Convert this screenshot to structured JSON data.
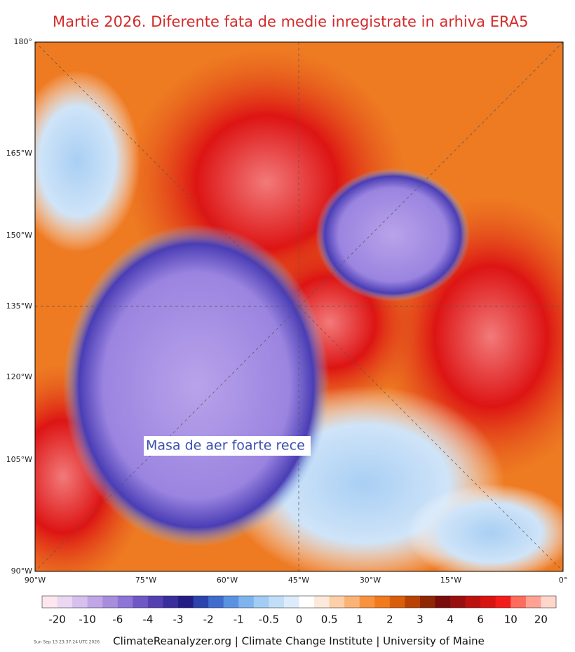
{
  "title": "Martie 2026. Diferente fata de medie inregistrate in arhiva ERA5",
  "annotation": "Masa de aer foarte rece",
  "left_labels": [
    "180°",
    "165°W",
    "150°W",
    "135°W",
    "120°W",
    "105°W",
    "90°W"
  ],
  "bottom_labels": [
    "90°W",
    "75°W",
    "60°W",
    "45°W",
    "30°W",
    "15°W",
    "0°"
  ],
  "colorbar": {
    "colors": [
      "#fde6ee",
      "#ead8f2",
      "#d6c0ee",
      "#c0a6e6",
      "#a88ddf",
      "#8e74d6",
      "#6f58c6",
      "#5540b2",
      "#3a2d9c",
      "#241d86",
      "#2c44ad",
      "#3f6ccd",
      "#5a92e2",
      "#7fb3ee",
      "#a3ccf4",
      "#c1def8",
      "#dcecfb",
      "#ffffff",
      "#fde9d9",
      "#fccfa8",
      "#fbb276",
      "#f8923f",
      "#f07a1c",
      "#d95e0c",
      "#b84206",
      "#8f2604",
      "#7a0c0c",
      "#98100e",
      "#bb1210",
      "#d81412",
      "#f41c1a",
      "#ff6b5d",
      "#ffa193",
      "#ffd6cc"
    ],
    "labels": [
      "-20",
      "-10",
      "-6",
      "-4",
      "-3",
      "-2",
      "-1",
      "-0.5",
      "0",
      "0.5",
      "1",
      "2",
      "3",
      "4",
      "6",
      "10",
      "20"
    ]
  },
  "footer": "ClimateReanalyzer.org | Climate Change Institute | University of Maine",
  "timestamp": "Sun Sep 13 23:37:24 UTC 2026"
}
